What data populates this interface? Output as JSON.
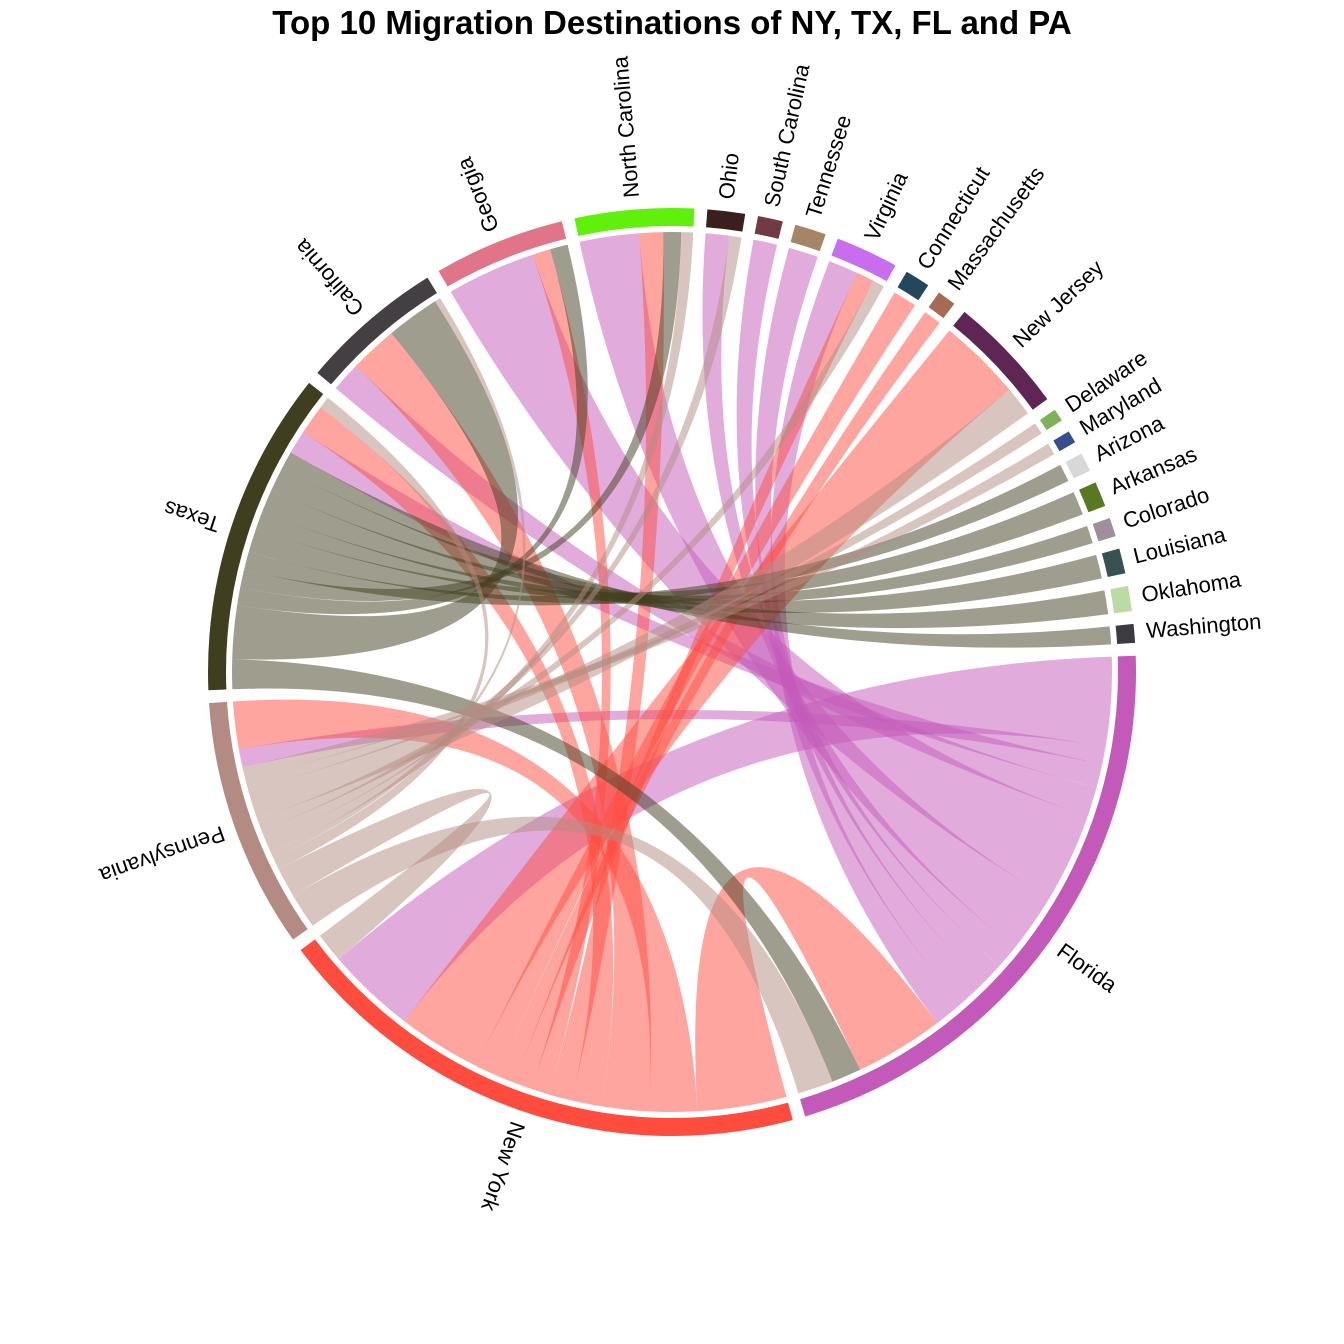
{
  "chart_data": {
    "type": "chord",
    "title": "Top 10 Migration Destinations of NY, TX, FL and PA",
    "sectors": [
      {
        "name": "Florida",
        "color": "#c359b9"
      },
      {
        "name": "New York",
        "color": "#fe4c3f"
      },
      {
        "name": "Pennsylvania",
        "color": "#b48b82"
      },
      {
        "name": "Texas",
        "color": "#3f3e1e"
      },
      {
        "name": "California",
        "color": "#433f43"
      },
      {
        "name": "Georgia",
        "color": "#e07589"
      },
      {
        "name": "North Carolina",
        "color": "#61f00b"
      },
      {
        "name": "Ohio",
        "color": "#3b1f1e"
      },
      {
        "name": "South Carolina",
        "color": "#703b44"
      },
      {
        "name": "Tennessee",
        "color": "#a68566"
      },
      {
        "name": "Virginia",
        "color": "#c76ded"
      },
      {
        "name": "Connecticut",
        "color": "#24485b"
      },
      {
        "name": "Massachusetts",
        "color": "#a56b55"
      },
      {
        "name": "New Jersey",
        "color": "#5f2655"
      },
      {
        "name": "Delaware",
        "color": "#7db25b"
      },
      {
        "name": "Maryland",
        "color": "#344f90"
      },
      {
        "name": "Arizona",
        "color": "#d8d8d8"
      },
      {
        "name": "Arkansas",
        "color": "#587824"
      },
      {
        "name": "Colorado",
        "color": "#9f8e9c"
      },
      {
        "name": "Louisiana",
        "color": "#385152"
      },
      {
        "name": "Oklahoma",
        "color": "#bcdba4"
      },
      {
        "name": "Washington",
        "color": "#3b3b40"
      }
    ],
    "flows": [
      {
        "from": "Florida",
        "to": "New York",
        "value": 1.5
      },
      {
        "from": "Florida",
        "to": "Pennsylvania",
        "value": 0.3
      },
      {
        "from": "Florida",
        "to": "Texas",
        "value": 0.4
      },
      {
        "from": "Florida",
        "to": "California",
        "value": 0.5
      },
      {
        "from": "Florida",
        "to": "Georgia",
        "value": 1.5
      },
      {
        "from": "Florida",
        "to": "North Carolina",
        "value": 1.0
      },
      {
        "from": "Florida",
        "to": "Ohio",
        "value": 0.4
      },
      {
        "from": "Florida",
        "to": "South Carolina",
        "value": 0.4
      },
      {
        "from": "Florida",
        "to": "Tennessee",
        "value": 0.5
      },
      {
        "from": "Florida",
        "to": "Virginia",
        "value": 0.5
      },
      {
        "from": "New York",
        "to": "Florida",
        "value": 1.5
      },
      {
        "from": "New York",
        "to": "Pennsylvania",
        "value": 0.8
      },
      {
        "from": "New York",
        "to": "California",
        "value": 0.8
      },
      {
        "from": "New York",
        "to": "Texas",
        "value": 0.5
      },
      {
        "from": "New York",
        "to": "North Carolina",
        "value": 0.4
      },
      {
        "from": "New York",
        "to": "Georgia",
        "value": 0.3
      },
      {
        "from": "New York",
        "to": "Virginia",
        "value": 0.3
      },
      {
        "from": "New York",
        "to": "Massachusetts",
        "value": 0.3
      },
      {
        "from": "New York",
        "to": "Connecticut",
        "value": 0.4
      },
      {
        "from": "New York",
        "to": "New Jersey",
        "value": 1.4
      },
      {
        "from": "Texas",
        "to": "Florida",
        "value": 0.5
      },
      {
        "from": "Texas",
        "to": "California",
        "value": 0.9
      },
      {
        "from": "Texas",
        "to": "Georgia",
        "value": 0.3
      },
      {
        "from": "Texas",
        "to": "North Carolina",
        "value": 0.3
      },
      {
        "from": "Texas",
        "to": "Arizona",
        "value": 0.3
      },
      {
        "from": "Texas",
        "to": "Arkansas",
        "value": 0.4
      },
      {
        "from": "Texas",
        "to": "Colorado",
        "value": 0.3
      },
      {
        "from": "Texas",
        "to": "Louisiana",
        "value": 0.4
      },
      {
        "from": "Texas",
        "to": "Oklahoma",
        "value": 0.4
      },
      {
        "from": "Texas",
        "to": "Washington",
        "value": 0.3
      },
      {
        "from": "Pennsylvania",
        "to": "Florida",
        "value": 0.6
      },
      {
        "from": "Pennsylvania",
        "to": "New York",
        "value": 0.5
      },
      {
        "from": "Pennsylvania",
        "to": "Texas",
        "value": 0.2
      },
      {
        "from": "Pennsylvania",
        "to": "California",
        "value": 0.1
      },
      {
        "from": "Pennsylvania",
        "to": "North Carolina",
        "value": 0.2
      },
      {
        "from": "Pennsylvania",
        "to": "Ohio",
        "value": 0.2
      },
      {
        "from": "Pennsylvania",
        "to": "Virginia",
        "value": 0.2
      },
      {
        "from": "Pennsylvania",
        "to": "New Jersey",
        "value": 0.5
      },
      {
        "from": "Pennsylvania",
        "to": "Delaware",
        "value": 0.2
      },
      {
        "from": "Pennsylvania",
        "to": "Maryland",
        "value": 0.2
      }
    ]
  }
}
